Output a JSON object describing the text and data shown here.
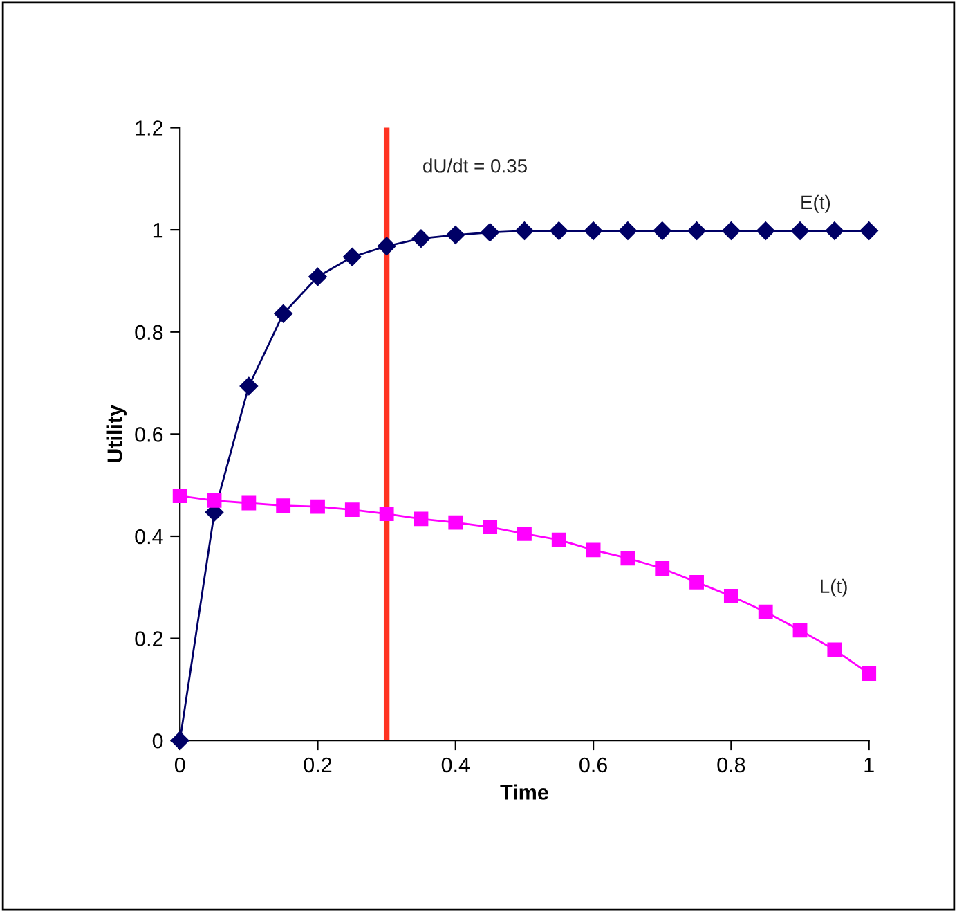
{
  "chart_data": {
    "type": "line",
    "xlabel": "Time",
    "ylabel": "Utility",
    "x": [
      0,
      0.05,
      0.1,
      0.15,
      0.2,
      0.25,
      0.3,
      0.35,
      0.4,
      0.45,
      0.5,
      0.55,
      0.6,
      0.65,
      0.7,
      0.75,
      0.8,
      0.85,
      0.9,
      0.95,
      1
    ],
    "series": [
      {
        "name": "E(t)",
        "color": "#000066",
        "marker": "diamond",
        "values": [
          0,
          0.447,
          0.694,
          0.836,
          0.908,
          0.947,
          0.968,
          0.983,
          0.99,
          0.995,
          0.998,
          0.998,
          0.998,
          0.998,
          0.998,
          0.998,
          0.998,
          0.998,
          0.998,
          0.998,
          0.998
        ]
      },
      {
        "name": "L(t)",
        "color": "#ff00ff",
        "marker": "square",
        "values": [
          0.479,
          0.47,
          0.465,
          0.46,
          0.458,
          0.452,
          0.444,
          0.434,
          0.427,
          0.418,
          0.405,
          0.393,
          0.373,
          0.357,
          0.337,
          0.31,
          0.283,
          0.252,
          0.216,
          0.178,
          0.131
        ]
      }
    ],
    "xlim": [
      0,
      1
    ],
    "xticks": [
      0,
      0.2,
      0.4,
      0.6,
      0.8,
      1
    ],
    "ylim": [
      0,
      1.2
    ],
    "yticks": [
      0,
      0.2,
      0.4,
      0.6,
      0.8,
      1,
      1.2
    ],
    "ref_lines": [
      {
        "axis": "x",
        "value": 0.3,
        "color": "#ff3322"
      }
    ],
    "annotations": [
      "dU/dt = 0.35"
    ],
    "grid": false,
    "legend": false,
    "line_style": "solid"
  }
}
